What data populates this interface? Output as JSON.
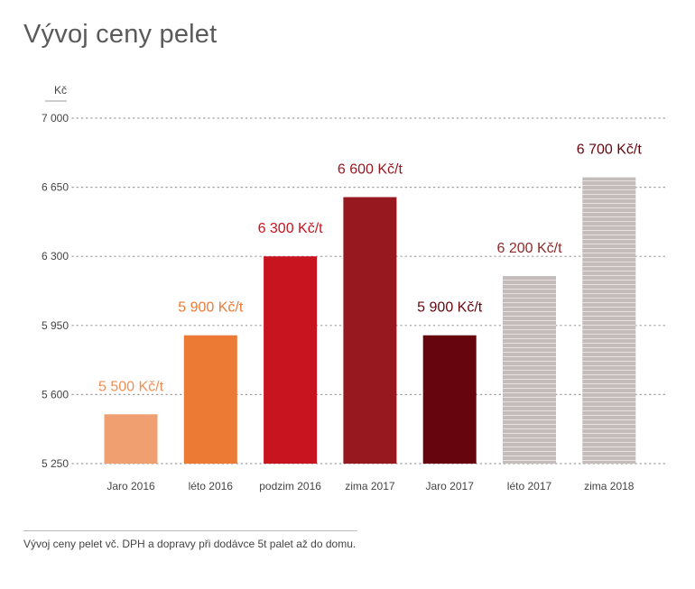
{
  "title": "Vývoj ceny pelet",
  "footnote": "Vývoj ceny pelet vč. DPH a dopravy při dodávce 5t palet až do domu.",
  "chart_data": {
    "type": "bar",
    "ylabel": "Kč",
    "ylim": [
      5250,
      7000
    ],
    "yticks": [
      5250,
      5600,
      5950,
      6300,
      6650,
      7000
    ],
    "ytick_labels": [
      "5 250",
      "5 600",
      "5 950",
      "6 300",
      "6 650",
      "7 000"
    ],
    "grid": true,
    "categories": [
      "Jaro 2016",
      "léto 2016",
      "podzim 2016",
      "zima 2017",
      "Jaro 2017",
      "léto 2017",
      "zima 2018"
    ],
    "values": [
      5500,
      5900,
      6300,
      6600,
      5900,
      6200,
      6700
    ],
    "data_labels": [
      "5 500 Kč/t",
      "5 900 Kč/t",
      "6 300 Kč/t",
      "6 600 Kč/t",
      "5 900 Kč/t",
      "6 200 Kč/t",
      "6 700 Kč/t"
    ],
    "bar_colors": [
      "#f0a070",
      "#ec7a35",
      "#c8141f",
      "#981820",
      "#66050d",
      "#c3bcba",
      "#c3bcba"
    ],
    "label_colors": [
      "#ee8f55",
      "#ec7a35",
      "#c8141f",
      "#981820",
      "#66050d",
      "#8f2a2a",
      "#66050d"
    ],
    "bar_striped": [
      false,
      false,
      false,
      false,
      false,
      true,
      true
    ]
  }
}
